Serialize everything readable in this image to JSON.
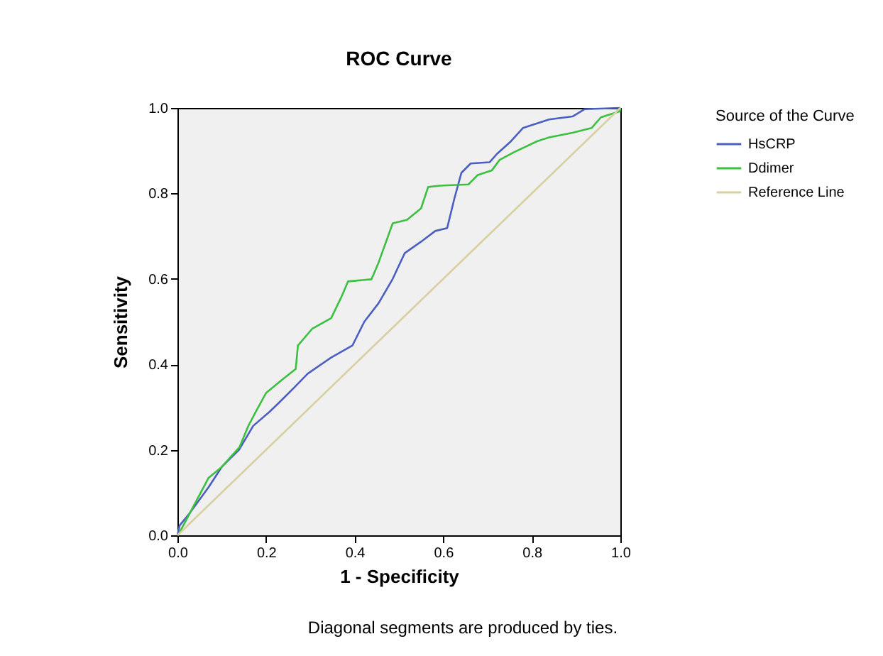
{
  "chart_data": {
    "type": "line",
    "title": "ROC Curve",
    "xlabel": "1 - Specificity",
    "ylabel": "Sensitivity",
    "legend_title": "Source of the Curve",
    "legend": "right",
    "grid": false,
    "marker": "none",
    "line_style": "solid",
    "xlim": [
      0,
      1
    ],
    "ylim": [
      0,
      1
    ],
    "xticks": [
      {
        "value": 0,
        "label": "0.0"
      },
      {
        "value": 0.2,
        "label": "0.2"
      },
      {
        "value": 0.4,
        "label": "0.4"
      },
      {
        "value": 0.6,
        "label": "0.6"
      },
      {
        "value": 0.8,
        "label": "0.8"
      },
      {
        "value": 1,
        "label": "1.0"
      }
    ],
    "yticks": [
      {
        "value": 0,
        "label": "0.0"
      },
      {
        "value": 0.2,
        "label": "0.2"
      },
      {
        "value": 0.4,
        "label": "0.4"
      },
      {
        "value": 0.6,
        "label": "0.6"
      },
      {
        "value": 0.8,
        "label": "0.8"
      },
      {
        "value": 1,
        "label": "1.0"
      }
    ],
    "series": [
      {
        "name": "HsCRP",
        "color": "#4a5fc0",
        "x": [
          0,
          0.005,
          0.027,
          0.07,
          0.1,
          0.139,
          0.171,
          0.208,
          0.23,
          0.262,
          0.294,
          0.347,
          0.395,
          0.422,
          0.454,
          0.486,
          0.513,
          0.55,
          0.582,
          0.609,
          0.625,
          0.641,
          0.662,
          0.705,
          0.721,
          0.753,
          0.78,
          0.839,
          0.892,
          0.919,
          1
        ],
        "values": [
          0,
          0.023,
          0.051,
          0.112,
          0.16,
          0.2,
          0.256,
          0.289,
          0.311,
          0.344,
          0.378,
          0.416,
          0.444,
          0.5,
          0.543,
          0.6,
          0.66,
          0.687,
          0.712,
          0.719,
          0.787,
          0.848,
          0.87,
          0.873,
          0.892,
          0.922,
          0.953,
          0.973,
          0.98,
          0.997,
          1
        ]
      },
      {
        "name": "Ddimer",
        "color": "#3cc040",
        "x": [
          0,
          0.005,
          0.07,
          0.1,
          0.14,
          0.16,
          0.18,
          0.2,
          0.24,
          0.267,
          0.272,
          0.304,
          0.347,
          0.369,
          0.385,
          0.438,
          0.454,
          0.486,
          0.518,
          0.55,
          0.566,
          0.593,
          0.657,
          0.678,
          0.71,
          0.727,
          0.759,
          0.812,
          0.839,
          0.892,
          0.935,
          0.956,
          0.999,
          1
        ],
        "values": [
          0,
          0.007,
          0.134,
          0.16,
          0.206,
          0.256,
          0.295,
          0.333,
          0.367,
          0.389,
          0.444,
          0.483,
          0.508,
          0.555,
          0.594,
          0.599,
          0.638,
          0.73,
          0.738,
          0.765,
          0.815,
          0.818,
          0.821,
          0.843,
          0.854,
          0.878,
          0.896,
          0.922,
          0.931,
          0.942,
          0.953,
          0.978,
          0.992,
          1
        ]
      },
      {
        "name": "Reference Line",
        "color": "#d8d0a0",
        "x": [
          0,
          1
        ],
        "values": [
          0,
          1
        ]
      }
    ],
    "annotations": [
      "Diagonal segments are produced by ties."
    ]
  }
}
